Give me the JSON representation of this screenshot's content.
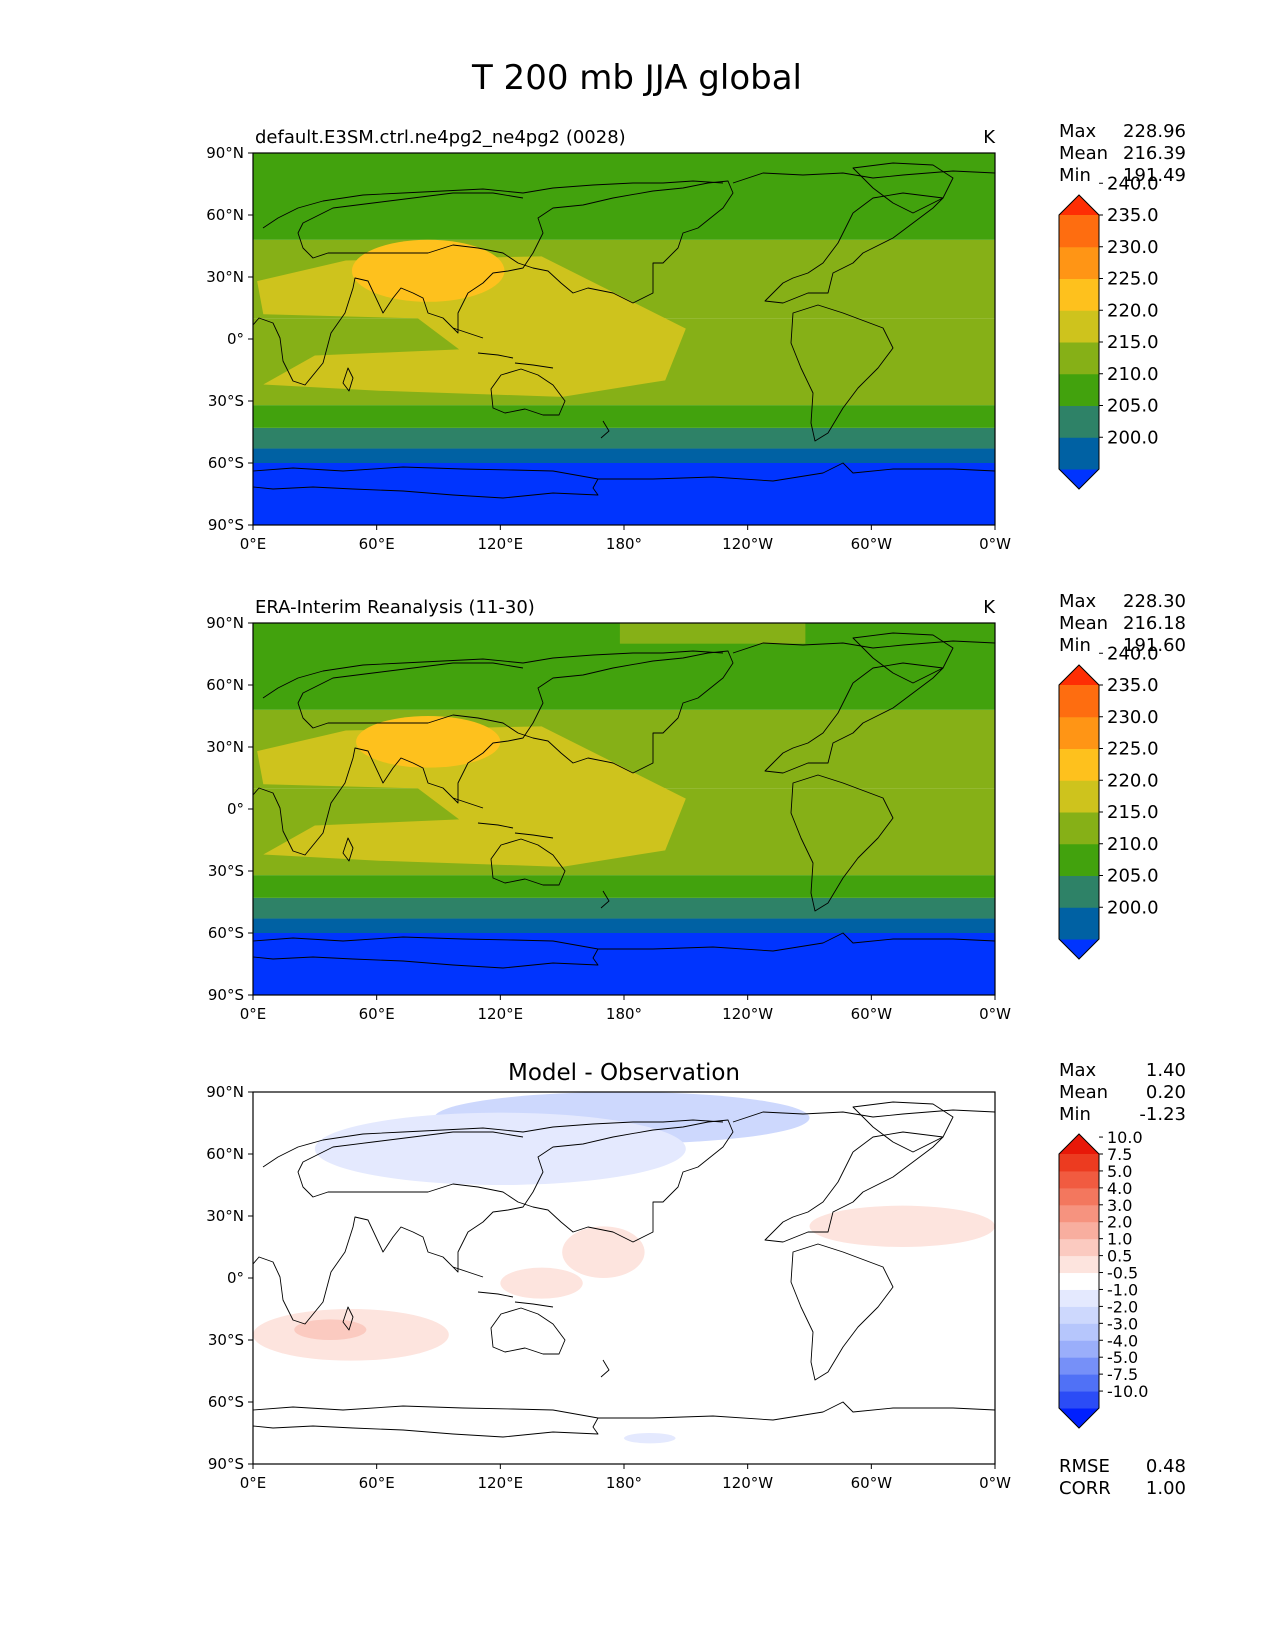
{
  "figure_title": "T 200 mb JJA global",
  "colors": {
    "abs_levels": [
      "#0034fe",
      "#0061a3",
      "#2e8267",
      "#42a20d",
      "#86b017",
      "#cec31d",
      "#fec11d",
      "#ff9515",
      "#fe6d10",
      "#fe2e04"
    ],
    "diff_levels": [
      "#0020fe",
      "#2b4cf6",
      "#5071f6",
      "#7690f8",
      "#9aaefa",
      "#b6c6fc",
      "#cdd8fd",
      "#e4e9fe",
      "#ffffff",
      "#fde4de",
      "#fbcac0",
      "#f8ae9f",
      "#f6937f",
      "#f3775e",
      "#f15b40",
      "#ec3b20",
      "#e81808"
    ]
  },
  "panels": [
    {
      "left_title": "default.E3SM.ctrl.ne4pg2_ne4pg2 (0028)",
      "right_title": "K",
      "center_title": "",
      "stats": [
        {
          "label": "Max",
          "value": "228.96"
        },
        {
          "label": "Mean",
          "value": "216.39"
        },
        {
          "label": "Min",
          "value": "191.49"
        }
      ],
      "colorbar": {
        "scale": "abs",
        "ticks": [
          "200.0",
          "205.0",
          "210.0",
          "215.0",
          "220.0",
          "225.0",
          "230.0",
          "235.0",
          "240.0"
        ]
      },
      "extra_stats": []
    },
    {
      "left_title": "ERA-Interim Reanalysis (11-30)",
      "right_title": "K",
      "center_title": "",
      "stats": [
        {
          "label": "Max",
          "value": "228.30"
        },
        {
          "label": "Mean",
          "value": "216.18"
        },
        {
          "label": "Min",
          "value": "191.60"
        }
      ],
      "colorbar": {
        "scale": "abs",
        "ticks": [
          "200.0",
          "205.0",
          "210.0",
          "215.0",
          "220.0",
          "225.0",
          "230.0",
          "235.0",
          "240.0"
        ]
      },
      "extra_stats": []
    },
    {
      "left_title": "",
      "right_title": "",
      "center_title": "Model - Observation",
      "stats": [
        {
          "label": "Max",
          "value": "1.40"
        },
        {
          "label": "Mean",
          "value": "0.20"
        },
        {
          "label": "Min",
          "value": "-1.23"
        }
      ],
      "colorbar": {
        "scale": "diff",
        "ticks": [
          "-10.0",
          "-7.5",
          "-5.0",
          "-4.0",
          "-3.0",
          "-2.0",
          "-1.0",
          "-0.5",
          "0.5",
          "1.0",
          "2.0",
          "3.0",
          "4.0",
          "5.0",
          "7.5",
          "10.0"
        ]
      },
      "extra_stats": [
        {
          "label": "RMSE",
          "value": "0.48"
        },
        {
          "label": "CORR",
          "value": "1.00"
        }
      ]
    }
  ],
  "chart_data": [
    {
      "type": "heatmap",
      "title": "default.E3SM.ctrl.ne4pg2_ne4pg2 (0028)",
      "units": "K",
      "x_ticks": [
        "0°E",
        "60°E",
        "120°E",
        "180°",
        "120°W",
        "60°W",
        "0°W"
      ],
      "y_ticks": [
        "90°S",
        "60°S",
        "30°S",
        "0°",
        "30°N",
        "60°N",
        "90°N"
      ],
      "xlim": [
        0,
        360
      ],
      "ylim": [
        -90,
        90
      ],
      "contour_levels": [
        200,
        205,
        210,
        215,
        220,
        225,
        230,
        235,
        240
      ],
      "zonal_bands": [
        {
          "lat": [
            -90,
            -60
          ],
          "value": 197.5
        },
        {
          "lat": [
            -60,
            -53
          ],
          "value": 202.5
        },
        {
          "lat": [
            -53,
            -43
          ],
          "value": 207.5
        },
        {
          "lat": [
            -43,
            -32
          ],
          "value": 212.5
        },
        {
          "lat": [
            -32,
            10
          ],
          "value": 217.5
        },
        {
          "lat": [
            10,
            30
          ],
          "value": 217.5
        },
        {
          "lat": [
            30,
            48
          ],
          "value": 217.5
        },
        {
          "lat": [
            48,
            90
          ],
          "value": 212.5
        }
      ],
      "features": [
        {
          "name": "warm core",
          "lon": [
            48,
            122
          ],
          "lat": [
            18,
            48
          ],
          "value": 227.5
        }
      ],
      "stats": {
        "max": 228.96,
        "mean": 216.39,
        "min": 191.49
      }
    },
    {
      "type": "heatmap",
      "title": "ERA-Interim Reanalysis (11-30)",
      "units": "K",
      "x_ticks": [
        "0°E",
        "60°E",
        "120°E",
        "180°",
        "120°W",
        "60°W",
        "0°W"
      ],
      "y_ticks": [
        "90°S",
        "60°S",
        "30°S",
        "0°",
        "30°N",
        "60°N",
        "90°N"
      ],
      "xlim": [
        0,
        360
      ],
      "ylim": [
        -90,
        90
      ],
      "contour_levels": [
        200,
        205,
        210,
        215,
        220,
        225,
        230,
        235,
        240
      ],
      "zonal_bands": [
        {
          "lat": [
            -90,
            -60
          ],
          "value": 197.5
        },
        {
          "lat": [
            -60,
            -53
          ],
          "value": 202.5
        },
        {
          "lat": [
            -53,
            -43
          ],
          "value": 207.5
        },
        {
          "lat": [
            -43,
            -32
          ],
          "value": 212.5
        },
        {
          "lat": [
            -32,
            10
          ],
          "value": 217.5
        },
        {
          "lat": [
            10,
            30
          ],
          "value": 217.5
        },
        {
          "lat": [
            30,
            48
          ],
          "value": 217.5
        },
        {
          "lat": [
            48,
            90
          ],
          "value": 212.5
        }
      ],
      "features": [
        {
          "name": "warm core",
          "lon": [
            50,
            120
          ],
          "lat": [
            20,
            45
          ],
          "value": 227.5
        }
      ],
      "stats": {
        "max": 228.3,
        "mean": 216.18,
        "min": 191.6
      }
    },
    {
      "type": "heatmap",
      "title": "Model - Observation",
      "units": "K",
      "x_ticks": [
        "0°E",
        "60°E",
        "120°E",
        "180°",
        "120°W",
        "60°W",
        "0°W"
      ],
      "y_ticks": [
        "90°S",
        "60°S",
        "30°S",
        "0°",
        "30°N",
        "60°N",
        "90°N"
      ],
      "xlim": [
        0,
        360
      ],
      "ylim": [
        -90,
        90
      ],
      "contour_levels": [
        -10,
        -7.5,
        -5,
        -4,
        -3,
        -2,
        -1,
        -0.5,
        0.5,
        1,
        2,
        3,
        4,
        5,
        7.5,
        10
      ],
      "background_value": 0,
      "features": [
        {
          "lon": [
            88,
            270
          ],
          "lat": [
            65,
            90
          ],
          "value": -1.5
        },
        {
          "lon": [
            30,
            210
          ],
          "lat": [
            45,
            80
          ],
          "value": -0.75
        },
        {
          "lon": [
            0,
            95
          ],
          "lat": [
            -40,
            -15
          ],
          "value": 0.75
        },
        {
          "lon": [
            20,
            55
          ],
          "lat": [
            -30,
            -20
          ],
          "value": 1.5
        },
        {
          "lon": [
            270,
            360
          ],
          "lat": [
            15,
            35
          ],
          "value": 0.75
        },
        {
          "lon": [
            150,
            190
          ],
          "lat": [
            0,
            25
          ],
          "value": 0.75
        },
        {
          "lon": [
            120,
            160
          ],
          "lat": [
            -10,
            5
          ],
          "value": 0.75
        },
        {
          "lon": [
            180,
            205
          ],
          "lat": [
            -80,
            -75
          ],
          "value": -0.75
        }
      ],
      "stats": {
        "max": 1.4,
        "mean": 0.2,
        "min": -1.23,
        "rmse": 0.48,
        "corr": 1.0
      }
    }
  ]
}
